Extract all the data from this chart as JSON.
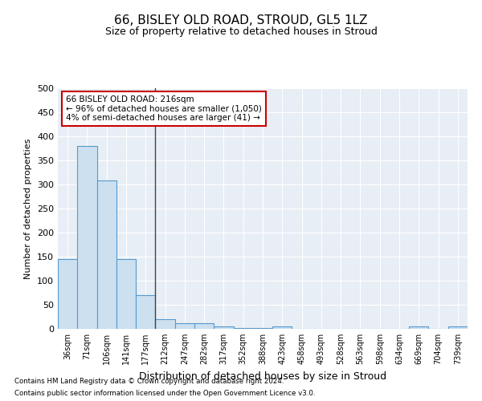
{
  "title": "66, BISLEY OLD ROAD, STROUD, GL5 1LZ",
  "subtitle": "Size of property relative to detached houses in Stroud",
  "xlabel": "Distribution of detached houses by size in Stroud",
  "ylabel": "Number of detached properties",
  "bin_labels": [
    "36sqm",
    "71sqm",
    "106sqm",
    "141sqm",
    "177sqm",
    "212sqm",
    "247sqm",
    "282sqm",
    "317sqm",
    "352sqm",
    "388sqm",
    "423sqm",
    "458sqm",
    "493sqm",
    "528sqm",
    "563sqm",
    "598sqm",
    "634sqm",
    "669sqm",
    "704sqm",
    "739sqm"
  ],
  "bar_values": [
    145,
    380,
    308,
    145,
    70,
    20,
    12,
    12,
    5,
    2,
    2,
    5,
    0,
    0,
    0,
    0,
    0,
    0,
    5,
    0,
    5
  ],
  "bar_color": "#cce0f0",
  "bar_edge_color": "#5599cc",
  "property_line_bin": 5,
  "annotation_text": "66 BISLEY OLD ROAD: 216sqm\n← 96% of detached houses are smaller (1,050)\n4% of semi-detached houses are larger (41) →",
  "annotation_box_color": "#ffffff",
  "annotation_box_edge": "#cc0000",
  "vline_color": "#444444",
  "ylim": [
    0,
    500
  ],
  "yticks": [
    0,
    50,
    100,
    150,
    200,
    250,
    300,
    350,
    400,
    450,
    500
  ],
  "background_color": "#e8eef5",
  "footer_line1": "Contains HM Land Registry data © Crown copyright and database right 2024.",
  "footer_line2": "Contains public sector information licensed under the Open Government Licence v3.0."
}
